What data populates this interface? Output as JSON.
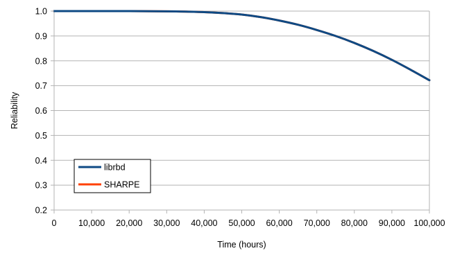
{
  "chart_data": {
    "type": "line",
    "title": "",
    "xlabel": "Time (hours)",
    "ylabel": "Reliability",
    "xlim": [
      0,
      100000
    ],
    "ylim": [
      0.2,
      1.0
    ],
    "x_ticks": [
      0,
      10000,
      20000,
      30000,
      40000,
      50000,
      60000,
      70000,
      80000,
      90000,
      100000
    ],
    "x_tick_labels": [
      "0",
      "10,000",
      "20,000",
      "30,000",
      "40,000",
      "50,000",
      "60,000",
      "70,000",
      "80,000",
      "90,000",
      "100,000"
    ],
    "y_ticks": [
      0.2,
      0.3,
      0.4,
      0.5,
      0.6,
      0.7,
      0.8,
      0.9,
      1.0
    ],
    "y_tick_labels": [
      "0.2",
      "0.3",
      "0.4",
      "0.5",
      "0.6",
      "0.7",
      "0.8",
      "0.9",
      "1.0"
    ],
    "grid": true,
    "legend_position": "bottom-left",
    "series": [
      {
        "name": "librbd",
        "color": "#0e4a84",
        "x": [
          0,
          10000,
          20000,
          30000,
          35000,
          40000,
          45000,
          50000,
          55000,
          60000,
          65000,
          70000,
          75000,
          80000,
          85000,
          90000,
          95000,
          100000
        ],
        "y": [
          1.0,
          1.0,
          1.0,
          0.999,
          0.998,
          0.996,
          0.992,
          0.986,
          0.976,
          0.962,
          0.945,
          0.924,
          0.9,
          0.872,
          0.84,
          0.804,
          0.764,
          0.722
        ]
      },
      {
        "name": "SHARPE",
        "color": "#ff4000",
        "x": [
          0,
          10000,
          20000,
          30000,
          35000,
          40000,
          45000,
          50000,
          55000,
          60000,
          65000,
          70000,
          75000,
          80000,
          85000,
          90000,
          95000,
          100000
        ],
        "y": [
          1.0,
          1.0,
          1.0,
          0.999,
          0.998,
          0.996,
          0.992,
          0.986,
          0.976,
          0.962,
          0.945,
          0.924,
          0.9,
          0.872,
          0.84,
          0.804,
          0.764,
          0.722
        ]
      }
    ]
  }
}
